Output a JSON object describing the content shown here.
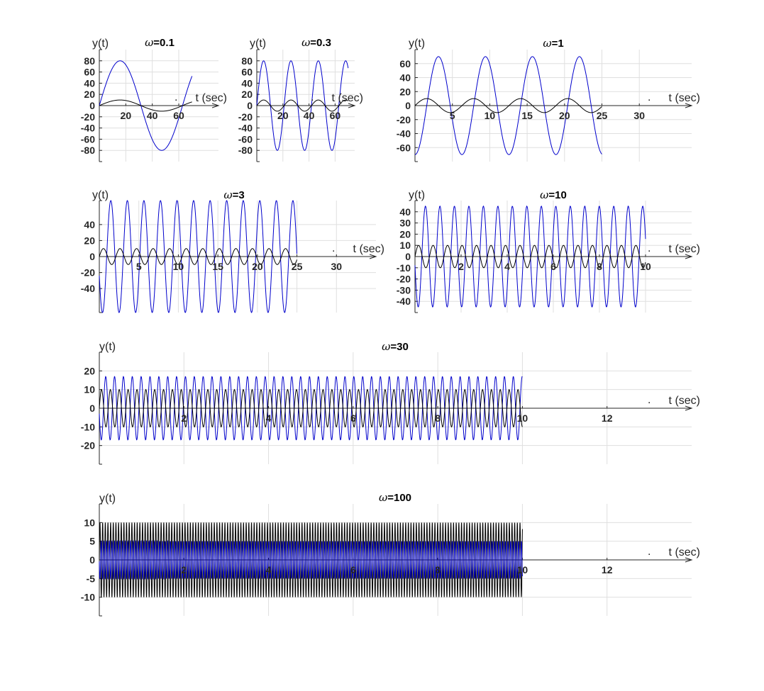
{
  "chart_data": [
    {
      "type": "line",
      "title_symbol": "ω",
      "title_value": "=0.1",
      "ylabel": "y(t)",
      "xlabel": "t (sec)",
      "dot_label": ".",
      "omega": 0.1,
      "xlim": [
        0,
        90
      ],
      "ylim": [
        -100,
        100
      ],
      "xticks": [
        20,
        40,
        60
      ],
      "yticks": [
        -80,
        -60,
        -40,
        -20,
        0,
        20,
        40,
        60,
        80
      ],
      "grid": true,
      "series": [
        {
          "color": "#0000cc",
          "amplitude": 80,
          "t_end": 70,
          "phase_lag_deg": 0
        },
        {
          "color": "#000000",
          "amplitude": 10,
          "t_end": 70,
          "phase_lag_deg": 0
        }
      ]
    },
    {
      "type": "line",
      "title_symbol": "ω",
      "title_value": "=0.3",
      "ylabel": "y(t)",
      "xlabel": "t (sec)",
      "dot_label": ".",
      "omega": 0.3,
      "xlim": [
        0,
        75
      ],
      "ylim": [
        -100,
        100
      ],
      "xticks": [
        20,
        40,
        60
      ],
      "yticks": [
        -80,
        -60,
        -40,
        -20,
        0,
        20,
        40,
        60,
        80
      ],
      "grid": true,
      "series": [
        {
          "color": "#0000cc",
          "amplitude": 80,
          "t_end": 70,
          "phase_lag_deg": 0
        },
        {
          "color": "#000000",
          "amplitude": 10,
          "t_end": 70,
          "phase_lag_deg": 0
        }
      ]
    },
    {
      "type": "line",
      "title_symbol": "ω",
      "title_value": "=1",
      "ylabel": "y(t)",
      "xlabel": "t (sec)",
      "dot_label": ".",
      "omega": 1,
      "xlim": [
        0,
        37
      ],
      "ylim": [
        -80,
        80
      ],
      "xticks": [
        5,
        10,
        15,
        20,
        25,
        30
      ],
      "yticks": [
        -60,
        -40,
        -20,
        0,
        20,
        40,
        60
      ],
      "grid": true,
      "series": [
        {
          "color": "#0000cc",
          "amplitude": 70,
          "t_end": 25,
          "phase_lag_deg": 90
        },
        {
          "color": "#000000",
          "amplitude": 10,
          "t_end": 25,
          "phase_lag_deg": 0
        }
      ]
    },
    {
      "type": "line",
      "title_symbol": "ω",
      "title_value": "=3",
      "ylabel": "y(t)",
      "xlabel": "t (sec)",
      "dot_label": ".",
      "omega": 3,
      "xlim": [
        0,
        35
      ],
      "ylim": [
        -70,
        70
      ],
      "xticks": [
        5,
        10,
        15,
        20,
        25,
        30
      ],
      "yticks": [
        -40,
        -20,
        0,
        20,
        40
      ],
      "grid": true,
      "series": [
        {
          "color": "#0000cc",
          "amplitude": 70,
          "t_end": 25,
          "phase_lag_deg": 160
        },
        {
          "color": "#000000",
          "amplitude": 10,
          "t_end": 25,
          "phase_lag_deg": 0
        }
      ]
    },
    {
      "type": "line",
      "title_symbol": "ω",
      "title_value": "=10",
      "ylabel": "y(t)",
      "xlabel": "t (sec)",
      "dot_label": ".",
      "omega": 10,
      "xlim": [
        0,
        12
      ],
      "ylim": [
        -50,
        50
      ],
      "xticks": [
        2,
        4,
        6,
        8,
        10
      ],
      "yticks": [
        -40,
        -30,
        -20,
        -10,
        0,
        10,
        20,
        30,
        40
      ],
      "grid": true,
      "series": [
        {
          "color": "#0000cc",
          "amplitude": 45,
          "t_end": 10,
          "phase_lag_deg": 170
        },
        {
          "color": "#000000",
          "amplitude": 10,
          "t_end": 10,
          "phase_lag_deg": 0
        }
      ]
    },
    {
      "type": "line",
      "title_symbol": "ω",
      "title_value": "=30",
      "ylabel": "y(t)",
      "xlabel": "t (sec)",
      "dot_label": ".",
      "omega": 30,
      "xlim": [
        0,
        14
      ],
      "ylim": [
        -30,
        30
      ],
      "xticks": [
        2,
        4,
        6,
        8,
        10,
        12
      ],
      "yticks": [
        -20,
        -10,
        0,
        10,
        20
      ],
      "grid": true,
      "series": [
        {
          "color": "#0000cc",
          "amplitude": 17,
          "t_end": 10,
          "phase_lag_deg": 170
        },
        {
          "color": "#000000",
          "amplitude": 10,
          "t_end": 10,
          "phase_lag_deg": 0
        }
      ]
    },
    {
      "type": "line",
      "title_symbol": "ω",
      "title_value": "=100",
      "ylabel": "y(t)",
      "xlabel": "t (sec)",
      "dot_label": ".",
      "omega": 100,
      "xlim": [
        0,
        14
      ],
      "ylim": [
        -15,
        15
      ],
      "xticks": [
        2,
        4,
        6,
        8,
        10,
        12
      ],
      "yticks": [
        -10,
        -5,
        0,
        5,
        10
      ],
      "grid": true,
      "series": [
        {
          "color": "#000000",
          "amplitude": 10,
          "t_end": 10,
          "phase_lag_deg": 0
        },
        {
          "color": "#0000cc",
          "amplitude": 5,
          "t_end": 10,
          "phase_lag_deg": 175
        }
      ]
    }
  ]
}
